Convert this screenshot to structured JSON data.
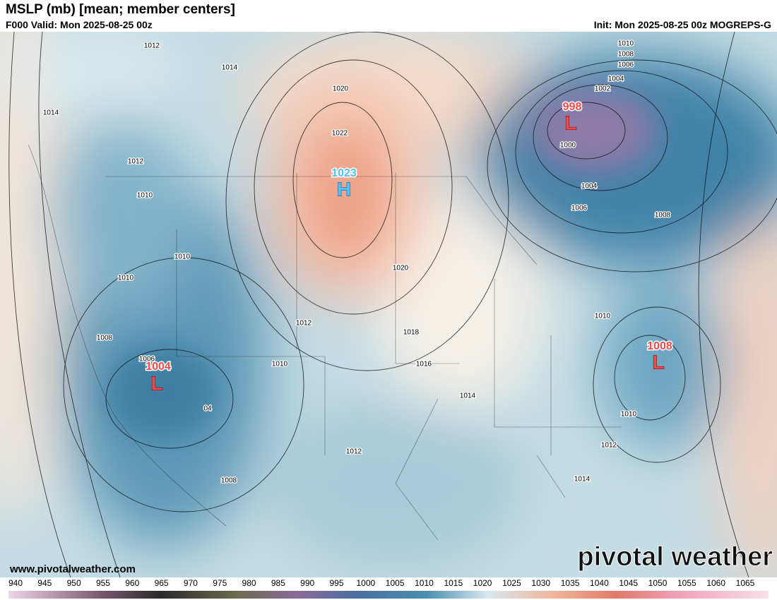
{
  "header": {
    "title": "MSLP (mb) [mean; member centers]",
    "valid": "F000 Valid: Mon 2025-08-25 00z",
    "init": "Init: Mon 2025-08-25 00z MOGREPS-G"
  },
  "map": {
    "contour_labels": [
      "1012",
      "1014",
      "1014",
      "1012",
      "1010",
      "1010",
      "1010",
      "1008",
      "1006",
      "1012",
      "1010",
      "1020",
      "1022",
      "1020",
      "1018",
      "1016",
      "1014",
      "1012",
      "1008",
      "1010",
      "1008",
      "1006",
      "1004",
      "1002",
      "1000",
      "1004",
      "1006",
      "1008",
      "1010",
      "1010",
      "1012",
      "1014",
      "04"
    ],
    "centers": [
      {
        "letter": "H",
        "value": "1023"
      },
      {
        "letter": "L",
        "value": "998"
      },
      {
        "letter": "L",
        "value": "1004"
      },
      {
        "letter": "L",
        "value": "1008"
      }
    ],
    "website": "www.pivotalweather.com",
    "logo": "pivotal weather"
  },
  "colorbar": {
    "labels": [
      940,
      945,
      950,
      955,
      960,
      965,
      970,
      975,
      980,
      985,
      990,
      995,
      1000,
      1005,
      1010,
      1015,
      1020,
      1025,
      1030,
      1035,
      1040,
      1045,
      1050,
      1055,
      1060,
      1065
    ]
  }
}
